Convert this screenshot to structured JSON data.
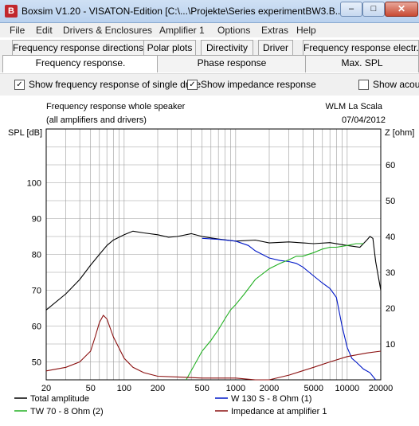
{
  "window": {
    "title": "Boxsim V1.20 - VISATON-Edition [C:\\...\\Projekte\\Series experimentBW3.B...",
    "icon_name": "boxsim-app-icon",
    "minimize_glyph": "–",
    "maximize_glyph": "□"
  },
  "menu": [
    "File",
    "Edit",
    "Drivers & Enclosures",
    "Amplifier 1",
    "Options",
    "Extras",
    "Help"
  ],
  "tabs_row1": [
    "Frequency response directions",
    "Polar plots",
    "Directivity",
    "Driver",
    "Frequency response electr..."
  ],
  "tabs_row2": [
    "Frequency response.",
    "Phase response",
    "Max. SPL"
  ],
  "active_tab": "Frequency response.",
  "options": {
    "single_drive": {
      "label": "Show frequency response of single drive",
      "checked": true
    },
    "impedance": {
      "label": "Show impedance response",
      "checked": true
    },
    "acoustic": {
      "label": "Show acous",
      "checked": false
    }
  },
  "chart_header": {
    "title": "Frequency response whole speaker",
    "subtitle": "(all amplifiers and drivers)",
    "project": "WLM La Scala",
    "date": "07/04/2012"
  },
  "chart_data": {
    "type": "line",
    "xlabel": "",
    "ylabel_left": "SPL [dB]",
    "ylabel_right": "Z [ohm]",
    "x_scale": "log",
    "xlim": [
      20,
      20000
    ],
    "ylim_left": [
      45,
      115
    ],
    "ylim_right": [
      0,
      70
    ],
    "x_ticks": [
      20,
      50,
      100,
      200,
      500,
      1000,
      2000,
      5000,
      10000,
      20000
    ],
    "x_tick_labels": [
      "20",
      "50",
      "100",
      "200",
      "500",
      "1000",
      "2000",
      "5000",
      "10000",
      "20000"
    ],
    "y_ticks_left": [
      50,
      60,
      70,
      80,
      90,
      100
    ],
    "y_ticks_right": [
      10,
      20,
      30,
      40,
      50,
      60
    ],
    "grid": true,
    "series": [
      {
        "name": "Total amplitude",
        "color": "#000000",
        "axis": "left",
        "x": [
          20,
          30,
          40,
          50,
          60,
          70,
          80,
          100,
          120,
          150,
          200,
          250,
          300,
          400,
          500,
          700,
          1000,
          1500,
          2000,
          3000,
          5000,
          7000,
          10000,
          13000,
          15000,
          16000,
          17000,
          18000,
          20000
        ],
        "y": [
          64.5,
          69,
          73,
          77,
          80,
          82.5,
          84,
          85.5,
          86.5,
          86,
          85.5,
          84.8,
          85,
          85.8,
          85,
          84.3,
          83.7,
          84,
          83.2,
          83.5,
          83,
          83.3,
          82.5,
          82,
          84,
          85,
          84.5,
          78,
          70
        ]
      },
      {
        "name": "W 130 S - 8 Ohm (1)",
        "color": "#0018c8",
        "axis": "left",
        "x": [
          500,
          700,
          1000,
          1300,
          1500,
          2000,
          2500,
          3000,
          3500,
          4000,
          5000,
          6000,
          7000,
          8000,
          9000,
          10000,
          11000,
          12000,
          14000,
          16000,
          18000
        ],
        "y": [
          84.5,
          84.2,
          83.7,
          82.5,
          81,
          79,
          78.3,
          78,
          77.5,
          76.5,
          74,
          72,
          70.5,
          68,
          60,
          54,
          51,
          50,
          48,
          47,
          45
        ]
      },
      {
        "name": "TW 70 - 8 Ohm (2)",
        "color": "#22b022",
        "axis": "left",
        "x": [
          360,
          500,
          600,
          700,
          800,
          900,
          1000,
          1200,
          1500,
          2000,
          2500,
          3000,
          3500,
          4000,
          5000,
          6000,
          7000,
          8000,
          10000,
          12000,
          14000
        ],
        "y": [
          45,
          53,
          56,
          59,
          62,
          64.5,
          66,
          69,
          73,
          76,
          77.5,
          78.5,
          79.5,
          79.5,
          80.5,
          81.5,
          82,
          82,
          82.5,
          83,
          83
        ]
      },
      {
        "name": "Impedance at amplifier 1",
        "color": "#8b1010",
        "axis": "right",
        "x": [
          20,
          30,
          40,
          50,
          55,
          60,
          65,
          70,
          80,
          100,
          120,
          150,
          200,
          300,
          500,
          1000,
          1500,
          1800,
          2000,
          3000,
          5000,
          7000,
          10000,
          15000,
          20000
        ],
        "y": [
          2.5,
          3.5,
          5,
          8,
          12,
          16,
          18,
          17,
          12,
          6,
          3.5,
          2,
          1,
          0.8,
          0.5,
          0.5,
          0,
          -0.5,
          0,
          1.3,
          3.5,
          5,
          6.5,
          7.5,
          8
        ]
      }
    ],
    "legend_placement": "bottom"
  }
}
